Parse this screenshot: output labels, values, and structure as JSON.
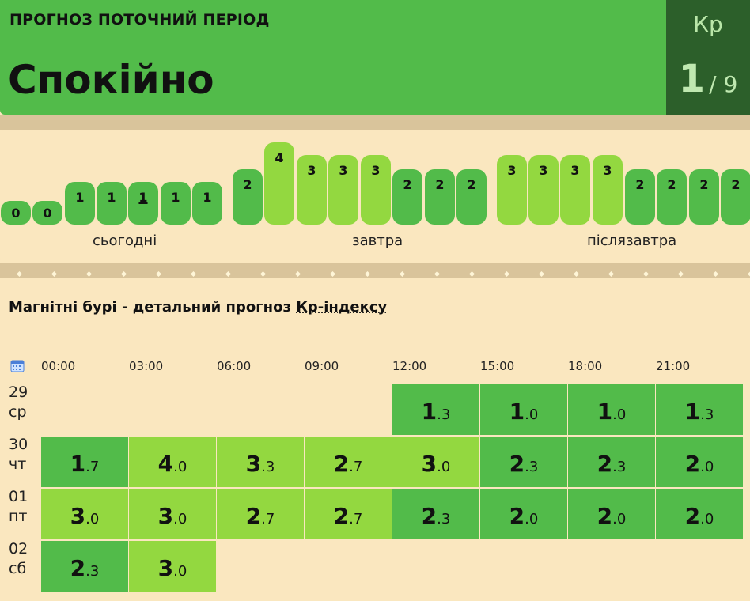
{
  "header": {
    "period": "ПРОГНОЗ ПОТОЧНИЙ ПЕРІОД",
    "status": "Спокійно"
  },
  "kp": {
    "label": "Кр",
    "value": "1",
    "max": "/ 9"
  },
  "colors": {
    "dark": "#52bb4a",
    "light": "#93d840",
    "kp_box": "#2c5f2a",
    "background": "#fae7bf"
  },
  "bars": [
    {
      "label": "0",
      "level": 0
    },
    {
      "label": "0",
      "level": 0
    },
    {
      "label": "1",
      "level": 1
    },
    {
      "label": "1",
      "level": 1
    },
    {
      "label": "1",
      "level": 1,
      "current": true
    },
    {
      "label": "1",
      "level": 1
    },
    {
      "label": "1",
      "level": 1
    },
    {
      "label": "2",
      "level": 2
    },
    {
      "label": "4",
      "level": 4
    },
    {
      "label": "3",
      "level": 3
    },
    {
      "label": "3",
      "level": 3
    },
    {
      "label": "3",
      "level": 3
    },
    {
      "label": "2",
      "level": 2
    },
    {
      "label": "2",
      "level": 2
    },
    {
      "label": "2",
      "level": 2
    },
    {
      "label": "3",
      "level": 3
    },
    {
      "label": "3",
      "level": 3
    },
    {
      "label": "3",
      "level": 3
    },
    {
      "label": "3",
      "level": 3
    },
    {
      "label": "2",
      "level": 2
    },
    {
      "label": "2",
      "level": 2
    },
    {
      "label": "2",
      "level": 2
    },
    {
      "label": "2",
      "level": 2
    }
  ],
  "days": [
    "сьогодні",
    "завтра",
    "післязавтра"
  ],
  "section": {
    "title_prefix": "Магнітні бурі - детальний прогноз ",
    "title_link": "Кр-індексу"
  },
  "calendar_icon": "calendar-icon",
  "times": [
    "00:00",
    "03:00",
    "06:00",
    "09:00",
    "12:00",
    "15:00",
    "18:00",
    "21:00"
  ],
  "rows": [
    {
      "date": "29",
      "weekday": "ср",
      "values": [
        null,
        null,
        null,
        null,
        "1.3",
        "1.0",
        "1.0",
        "1.3"
      ]
    },
    {
      "date": "30",
      "weekday": "чт",
      "values": [
        "1.7",
        "4.0",
        "3.3",
        "2.7",
        "3.0",
        "2.3",
        "2.3",
        "2.0"
      ]
    },
    {
      "date": "01",
      "weekday": "пт",
      "values": [
        "3.0",
        "3.0",
        "2.7",
        "2.7",
        "2.3",
        "2.0",
        "2.0",
        "2.0"
      ]
    },
    {
      "date": "02",
      "weekday": "сб",
      "values": [
        "2.3",
        "3.0",
        null,
        null,
        null,
        null,
        null,
        null
      ]
    }
  ]
}
